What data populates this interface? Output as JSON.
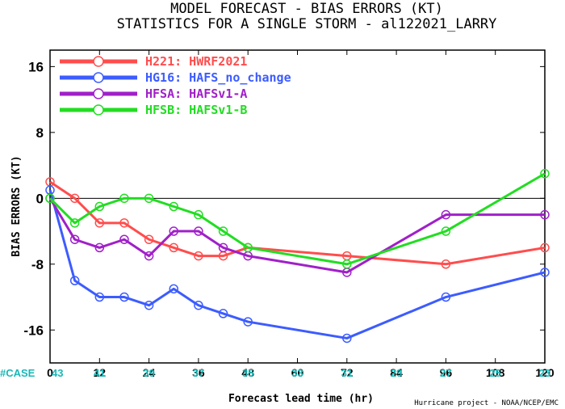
{
  "chart_data": {
    "type": "line",
    "title": "MODEL FORECAST - BIAS ERRORS (KT)",
    "subtitle": "STATISTICS FOR A SINGLE STORM - al122021_LARRY",
    "xlabel": "Forecast lead time (hr)",
    "ylabel": "BIAS ERRORS (KT)",
    "xlim": [
      0,
      120
    ],
    "ylim": [
      -20,
      18
    ],
    "x_ticks": [
      0,
      12,
      24,
      36,
      48,
      60,
      72,
      84,
      96,
      108,
      120
    ],
    "y_ticks": [
      16,
      8,
      0,
      -8,
      -16
    ],
    "grid": false,
    "zero_line": true,
    "legend_position": "top-left",
    "case_label": "#CASE",
    "cases": [
      {
        "x": 0,
        "n": 43
      },
      {
        "x": 12,
        "n": 41
      },
      {
        "x": 24,
        "n": 39
      },
      {
        "x": 36,
        "n": 37
      },
      {
        "x": 48,
        "n": 35
      },
      {
        "x": 60,
        "n": 33
      },
      {
        "x": 72,
        "n": 31
      },
      {
        "x": 84,
        "n": 29
      },
      {
        "x": 96,
        "n": 27
      },
      {
        "x": 108,
        "n": 25
      },
      {
        "x": 120,
        "n": 23
      }
    ],
    "credit": "Hurricane project - NOAA/NCEP/EMC",
    "series": [
      {
        "name": "H221: HWRF2021",
        "color": "#ff4d4d",
        "x": [
          0,
          6,
          12,
          18,
          24,
          30,
          36,
          42,
          48,
          72,
          96,
          120
        ],
        "y": [
          2,
          0,
          -3,
          -3,
          -5,
          -6,
          -7,
          -7,
          -6,
          -7,
          -8,
          -6
        ]
      },
      {
        "name": "HG16: HAFS_no_change",
        "color": "#3c5cff",
        "x": [
          0,
          6,
          12,
          18,
          24,
          30,
          36,
          42,
          48,
          72,
          96,
          120
        ],
        "y": [
          1,
          -10,
          -12,
          -12,
          -13,
          -11,
          -13,
          -14,
          -15,
          -17,
          -12,
          -9
        ]
      },
      {
        "name": "HFSA: HAFSv1-A",
        "color": "#a020c8",
        "x": [
          0,
          6,
          12,
          18,
          24,
          30,
          36,
          42,
          48,
          72,
          96,
          120
        ],
        "y": [
          0,
          -5,
          -6,
          -5,
          -7,
          -4,
          -4,
          -6,
          -7,
          -9,
          -2,
          -2
        ]
      },
      {
        "name": "HFSB: HAFSv1-B",
        "color": "#22dd22",
        "x": [
          0,
          6,
          12,
          18,
          24,
          30,
          36,
          42,
          48,
          72,
          96,
          120
        ],
        "y": [
          0,
          -3,
          -1,
          0,
          0,
          -1,
          -2,
          -4,
          -6,
          -8,
          -4,
          3
        ]
      }
    ]
  }
}
